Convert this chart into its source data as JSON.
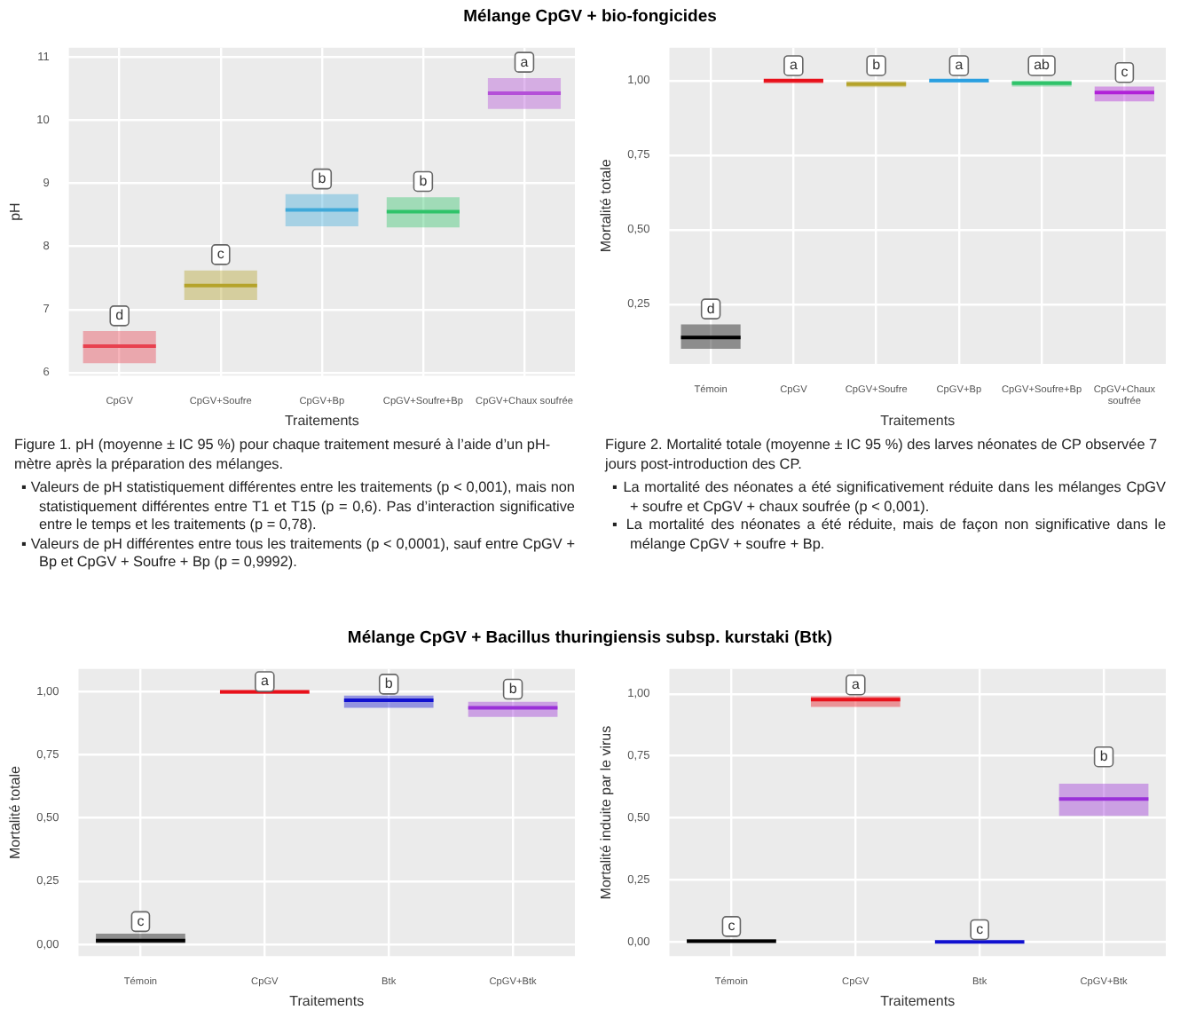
{
  "chart_data": [
    {
      "type": "box",
      "title": "Mélange CpGV + bio-fongicides",
      "xlabel": "Traitements",
      "ylabel": "pH",
      "categories": [
        "CpGV",
        "CpGV+Soufre",
        "CpGV+Bp",
        "CpGV+Soufre+Bp",
        "CpGV+Chaux soufrée"
      ],
      "boxes": [
        {
          "low": 6.15,
          "q1": 6.15,
          "median": 6.42,
          "q3": 6.66,
          "high": 6.66
        },
        {
          "low": 7.15,
          "q1": 7.15,
          "median": 7.38,
          "q3": 7.62,
          "high": 7.62
        },
        {
          "low": 8.32,
          "q1": 8.32,
          "median": 8.58,
          "q3": 8.83,
          "high": 8.83
        },
        {
          "low": 8.3,
          "q1": 8.3,
          "median": 8.55,
          "q3": 8.78,
          "high": 8.78
        },
        {
          "low": 10.18,
          "q1": 10.18,
          "median": 10.43,
          "q3": 10.67,
          "high": 10.67
        }
      ],
      "colors": [
        "#e8414f",
        "#b5a32a",
        "#3fa9d9",
        "#2fc36a",
        "#b44fd8"
      ],
      "ylim": [
        5.95,
        11.15
      ],
      "yticks": [
        6,
        7,
        8,
        9,
        10,
        11
      ],
      "grid": true,
      "legend": false,
      "annotations": [
        {
          "text": "d",
          "x": "CpGV",
          "y": 6.9
        },
        {
          "text": "c",
          "x": "CpGV+Soufre",
          "y": 7.87
        },
        {
          "text": "b",
          "x": "CpGV+Bp",
          "y": 9.07
        },
        {
          "text": "b",
          "x": "CpGV+Soufre+Bp",
          "y": 9.03
        },
        {
          "text": "a",
          "x": "CpGV+Chaux soufrée",
          "y": 10.92
        },
        "Figure 1. pH (moyenne ± IC 95 %) pour chaque traitement mesuré à l’aide d’un pH-mètre après la préparation des mélanges.",
        "▪ Valeurs de pH statistiquement différentes entre les traitements (p < 0,001), mais non statistiquement différentes entre T1 et T15 (p = 0,6). Pas d’interaction significative entre le temps et les traitements (p = 0,78).",
        "▪ Valeurs de pH différentes entre tous les traitements (p < 0,0001), sauf entre CpGV + Bp et CpGV + Soufre + Bp (p = 0,9992)."
      ]
    },
    {
      "type": "box",
      "xlabel": "Traitements",
      "ylabel": "Mortalité totale",
      "categories": [
        "Témoin",
        "CpGV",
        "CpGV+Soufre",
        "CpGV+Bp",
        "CpGV+Soufre+Bp",
        "CpGV+Chaux soufrée"
      ],
      "boxes": [
        {
          "low": 0.1,
          "q1": 0.1,
          "median": 0.138,
          "q3": 0.182,
          "high": 0.182
        },
        {
          "low": 0.99,
          "q1": 0.99,
          "median": 1.0,
          "q3": 1.0,
          "high": 1.0
        },
        {
          "low": 0.978,
          "q1": 0.978,
          "median": 0.988,
          "q3": 0.998,
          "high": 0.998
        },
        {
          "low": 0.993,
          "q1": 0.993,
          "median": 1.0,
          "q3": 1.0,
          "high": 1.0
        },
        {
          "low": 0.98,
          "q1": 0.98,
          "median": 0.991,
          "q3": 1.0,
          "high": 1.0
        },
        {
          "low": 0.93,
          "q1": 0.93,
          "median": 0.96,
          "q3": 0.98,
          "high": 0.98
        }
      ],
      "colors": [
        "#000000",
        "#e8101a",
        "#b5a32a",
        "#2a9fe0",
        "#2fc36a",
        "#b020d8"
      ],
      "ylim": [
        0.05,
        1.11
      ],
      "yticks": [
        {
          "value": 0.25,
          "label": "0,25"
        },
        {
          "value": 0.5,
          "label": "0,50"
        },
        {
          "value": 0.75,
          "label": "0,75"
        },
        {
          "value": 1,
          "label": "1,00"
        }
      ],
      "grid": true,
      "legend": false,
      "annotations": [
        {
          "text": "d",
          "x": "Témoin",
          "y": 0.234
        },
        {
          "text": "a",
          "x": "CpGV",
          "y": 1.05
        },
        {
          "text": "b",
          "x": "CpGV+Soufre",
          "y": 1.05
        },
        {
          "text": "a",
          "x": "CpGV+Bp",
          "y": 1.05
        },
        {
          "text": "ab",
          "x": "CpGV+Soufre+Bp",
          "y": 1.05
        },
        {
          "text": "c",
          "x": "CpGV+Chaux soufrée",
          "y": 1.027
        },
        "Figure 2. Mortalité totale (moyenne ± IC 95 %) des larves néonates de CP observée 7 jours post-introduction des CP.",
        "▪ La mortalité des néonates a été significativement réduite dans les mélanges CpGV + soufre et CpGV + chaux soufrée (p < 0,001).",
        "▪ La mortalité des néonates a été réduite, mais de façon non significative dans le mélange CpGV + soufre + Bp."
      ]
    },
    {
      "type": "box",
      "title": "Mélange CpGV + Bacillus thuringiensis subsp. kurstaki (Btk)",
      "xlabel": "Traitements",
      "ylabel": "Mortalité totale",
      "categories": [
        "Témoin",
        "CpGV",
        "Btk",
        "CpGV+Btk"
      ],
      "boxes": [
        {
          "low": 0.004,
          "q1": 0.004,
          "median": 0.015,
          "q3": 0.042,
          "high": 0.042
        },
        {
          "low": 0.992,
          "q1": 0.992,
          "median": 1.0,
          "q3": 1.0,
          "high": 1.0
        },
        {
          "low": 0.936,
          "q1": 0.936,
          "median": 0.966,
          "q3": 0.985,
          "high": 0.985
        },
        {
          "low": 0.9,
          "q1": 0.9,
          "median": 0.936,
          "q3": 0.96,
          "high": 0.96
        }
      ],
      "colors": [
        "#000000",
        "#e8101a",
        "#1010d0",
        "#9a30d8"
      ],
      "ylim": [
        -0.047,
        1.09
      ],
      "yticks": [
        {
          "value": 0,
          "label": "0,00"
        },
        {
          "value": 0.25,
          "label": "0,25"
        },
        {
          "value": 0.5,
          "label": "0,50"
        },
        {
          "value": 0.75,
          "label": "0,75"
        },
        {
          "value": 1,
          "label": "1,00"
        }
      ],
      "grid": true,
      "legend": false,
      "annotations": [
        {
          "text": "c",
          "x": "Témoin",
          "y": 0.09
        },
        {
          "text": "a",
          "x": "CpGV",
          "y": 1.04
        },
        {
          "text": "b",
          "x": "Btk",
          "y": 1.03
        },
        {
          "text": "b",
          "x": "CpGV+Btk",
          "y": 1.01
        }
      ]
    },
    {
      "type": "box",
      "xlabel": "Traitements",
      "ylabel": "Mortalité induite par le virus",
      "categories": [
        "Témoin",
        "CpGV",
        "Btk",
        "CpGV+Btk"
      ],
      "boxes": [
        {
          "low": 0,
          "q1": 0,
          "median": 0.002,
          "q3": 0.01,
          "high": 0.01
        },
        {
          "low": 0.947,
          "q1": 0.947,
          "median": 0.977,
          "q3": 0.99,
          "high": 0.99
        },
        {
          "low": 0,
          "q1": 0,
          "median": 0,
          "q3": 0.004,
          "high": 0.004
        },
        {
          "low": 0.508,
          "q1": 0.508,
          "median": 0.576,
          "q3": 0.638,
          "high": 0.638
        }
      ],
      "colors": [
        "#000000",
        "#e8101a",
        "#1010d0",
        "#9a30d8"
      ],
      "ylim": [
        -0.058,
        1.1
      ],
      "yticks": [
        {
          "value": 0,
          "label": "0,00"
        },
        {
          "value": 0.25,
          "label": "0,25"
        },
        {
          "value": 0.5,
          "label": "0,50"
        },
        {
          "value": 0.75,
          "label": "0,75"
        },
        {
          "value": 1,
          "label": "1,00"
        }
      ],
      "grid": true,
      "legend": false,
      "annotations": [
        {
          "text": "c",
          "x": "Témoin",
          "y": 0.062
        },
        {
          "text": "a",
          "x": "CpGV",
          "y": 1.036
        },
        {
          "text": "c",
          "x": "Btk",
          "y": 0.049
        },
        {
          "text": "b",
          "x": "CpGV+Btk",
          "y": 0.746
        }
      ]
    }
  ]
}
